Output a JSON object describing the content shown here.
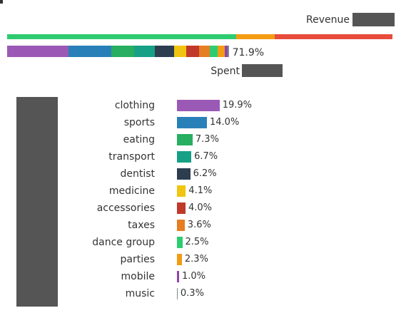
{
  "chart_data": {
    "type": "bar",
    "revenue": {
      "label": "Revenue",
      "segment_colors": [
        "#2ecc71",
        "#f39c12",
        "#e74c3c"
      ],
      "segment_shares": [
        0.595,
        0.1,
        0.305
      ]
    },
    "spent": {
      "label": "Spent",
      "total_label": "71.9%",
      "total": 71.9
    },
    "categories": [
      "clothing",
      "sports",
      "eating",
      "transport",
      "dentist",
      "medicine",
      "accessories",
      "taxes",
      "dance group",
      "parties",
      "mobile",
      "music"
    ],
    "values": [
      19.9,
      14.0,
      7.3,
      6.7,
      6.2,
      4.1,
      4.0,
      3.6,
      2.5,
      2.3,
      1.0,
      0.3
    ],
    "value_labels": [
      "19.9%",
      "14.0%",
      "7.3%",
      "6.7%",
      "6.2%",
      "4.1%",
      "4.0%",
      "3.6%",
      "2.5%",
      "2.3%",
      "1.0%",
      "0.3%"
    ],
    "colors": [
      "#9b59b6",
      "#2980b9",
      "#27ae60",
      "#16a085",
      "#2c3e50",
      "#f1c40f",
      "#c0392b",
      "#e67e22",
      "#2ecc71",
      "#f39c12",
      "#8e44ad",
      "#7f8c8d"
    ]
  }
}
